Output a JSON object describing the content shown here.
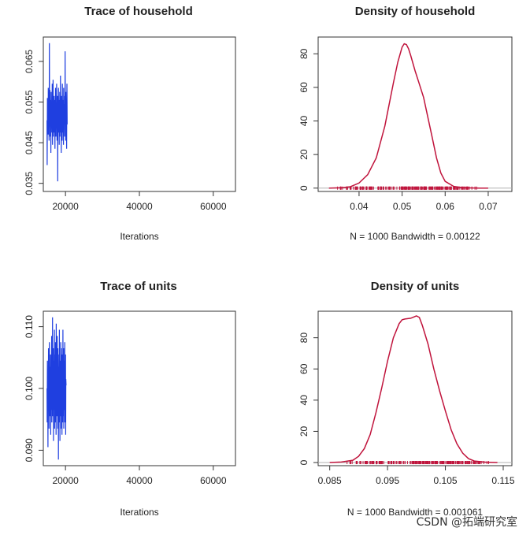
{
  "colors": {
    "trace": "#1f3fe0",
    "density": "#c0143c",
    "frame": "#333333",
    "zero_line": "#b0b0b0"
  },
  "watermark": "CSDN @拓端研究室",
  "chart_data": [
    {
      "type": "line",
      "title": "Trace of household",
      "xlabel": "Iterations",
      "ylabel": "",
      "xlim": [
        14000,
        66000
      ],
      "ylim": [
        0.033,
        0.071
      ],
      "xticks": [
        20000,
        40000,
        60000
      ],
      "xtick_labels": [
        "20000",
        "40000",
        "60000"
      ],
      "yticks": [
        0.035,
        0.045,
        0.055,
        0.065
      ],
      "ytick_labels": [
        "0.035",
        "0.045",
        "0.055",
        "0.065"
      ],
      "x_start": 15000,
      "x_step": 50,
      "values": [
        0.0505,
        0.0395,
        0.056,
        0.0485,
        0.0515,
        0.0535,
        0.047,
        0.0585,
        0.051,
        0.0495,
        0.055,
        0.0455,
        0.053,
        0.0695,
        0.049,
        0.0525,
        0.058,
        0.0465,
        0.0505,
        0.0555,
        0.0485,
        0.0425,
        0.0575,
        0.052,
        0.049,
        0.0545,
        0.0505,
        0.0475,
        0.0595,
        0.0515,
        0.0445,
        0.0535,
        0.0495,
        0.0605,
        0.0505,
        0.0465,
        0.0545,
        0.0515,
        0.0485,
        0.0565,
        0.0475,
        0.0525,
        0.0505,
        0.0435,
        0.0555,
        0.0495,
        0.0585,
        0.0515,
        0.0465,
        0.0545,
        0.0505,
        0.0485,
        0.0595,
        0.0525,
        0.0455,
        0.0535,
        0.0495,
        0.0565,
        0.0355,
        0.0505,
        0.0545,
        0.0475,
        0.0585,
        0.0515,
        0.0485,
        0.0555,
        0.0445,
        0.0525,
        0.0505,
        0.0575,
        0.0465,
        0.0535,
        0.0495,
        0.0615,
        0.0505,
        0.0475,
        0.0545,
        0.0425,
        0.0515,
        0.0565,
        0.0485,
        0.0525,
        0.0455,
        0.0595,
        0.0505,
        0.0535,
        0.0475,
        0.0555,
        0.0495,
        0.0445,
        0.0585,
        0.0515,
        0.0485,
        0.0545,
        0.0505,
        0.0465,
        0.0565,
        0.0525,
        0.0675,
        0.0495,
        0.0535,
        0.0455,
        0.0575,
        0.0505,
        0.0485,
        0.0545,
        0.0435,
        0.0525,
        0.0595,
        0.0495
      ]
    },
    {
      "type": "area",
      "title": "Density of household",
      "xlabel": "N = 1000   Bandwidth = 0.00122",
      "ylabel": "",
      "xlim": [
        0.0305,
        0.0755
      ],
      "ylim": [
        -2,
        90
      ],
      "xticks": [
        0.04,
        0.05,
        0.06,
        0.07
      ],
      "xtick_labels": [
        "0.04",
        "0.05",
        "0.06",
        "0.07"
      ],
      "yticks": [
        0,
        20,
        40,
        60,
        80
      ],
      "ytick_labels": [
        "0",
        "20",
        "40",
        "60",
        "80"
      ],
      "x": [
        0.033,
        0.036,
        0.038,
        0.04,
        0.042,
        0.044,
        0.046,
        0.047,
        0.048,
        0.049,
        0.05,
        0.0505,
        0.051,
        0.0515,
        0.052,
        0.053,
        0.054,
        0.055,
        0.056,
        0.057,
        0.058,
        0.059,
        0.06,
        0.062,
        0.064,
        0.066,
        0.068,
        0.07
      ],
      "y": [
        0,
        0.2,
        0.8,
        3,
        8,
        18,
        37,
        50,
        63,
        75,
        84,
        86,
        85.5,
        83,
        79,
        70,
        62,
        54,
        42,
        30,
        18,
        9,
        4,
        1,
        0.3,
        0.1,
        0,
        0
      ],
      "rug_range": [
        0.035,
        0.068
      ]
    },
    {
      "type": "line",
      "title": "Trace of units",
      "xlabel": "Iterations",
      "ylabel": "",
      "xlim": [
        14000,
        66000
      ],
      "ylim": [
        0.0875,
        0.1125
      ],
      "xticks": [
        20000,
        40000,
        60000
      ],
      "xtick_labels": [
        "20000",
        "40000",
        "60000"
      ],
      "yticks": [
        0.09,
        0.1,
        0.11
      ],
      "ytick_labels": [
        "0.090",
        "0.100",
        "0.110"
      ],
      "x_start": 15000,
      "x_step": 50,
      "values": [
        0.1,
        0.0945,
        0.1045,
        0.098,
        0.1015,
        0.0905,
        0.103,
        0.0995,
        0.1065,
        0.0965,
        0.1025,
        0.0935,
        0.1005,
        0.1075,
        0.0975,
        0.1035,
        0.0955,
        0.1015,
        0.0985,
        0.1055,
        0.0925,
        0.1045,
        0.0995,
        0.0965,
        0.1025,
        0.1085,
        0.0945,
        0.1005,
        0.1035,
        0.0975,
        0.1115,
        0.0955,
        0.1015,
        0.0985,
        0.1065,
        0.0915,
        0.1045,
        0.0995,
        0.1025,
        0.0965,
        0.1095,
        0.0935,
        0.1055,
        0.0985,
        0.1015,
        0.0945,
        0.1075,
        0.0975,
        0.1035,
        0.0925,
        0.1105,
        0.0965,
        0.1005,
        0.1045,
        0.0955,
        0.1085,
        0.0995,
        0.1025,
        0.0935,
        0.1065,
        0.0975,
        0.1015,
        0.0885,
        0.1035,
        0.0985,
        0.1055,
        0.0945,
        0.1095,
        0.0965,
        0.1025,
        0.0915,
        0.1045,
        0.1005,
        0.0955,
        0.1075,
        0.0985,
        0.1035,
        0.0935,
        0.1065,
        0.0995,
        0.1015,
        0.0925,
        0.1055,
        0.0975,
        0.1035,
        0.0945,
        0.1095,
        0.0985,
        0.1025,
        0.0955,
        0.1065,
        0.0935,
        0.1015,
        0.0995,
        0.1045,
        0.0965,
        0.1075,
        0.0945,
        0.1035,
        0.0985,
        0.1055,
        0.0925,
        0.1015,
        0.1005
      ]
    },
    {
      "type": "area",
      "title": "Density of units",
      "xlabel": "N = 1000   Bandwidth = 0.001061",
      "ylabel": "",
      "xlim": [
        0.083,
        0.1165
      ],
      "ylim": [
        -2,
        97
      ],
      "xticks": [
        0.085,
        0.095,
        0.105,
        0.115
      ],
      "xtick_labels": [
        "0.085",
        "0.095",
        "0.105",
        "0.115"
      ],
      "yticks": [
        0,
        20,
        40,
        60,
        80
      ],
      "ytick_labels": [
        "0",
        "20",
        "40",
        "60",
        "80"
      ],
      "x": [
        0.085,
        0.087,
        0.089,
        0.09,
        0.091,
        0.092,
        0.093,
        0.094,
        0.095,
        0.096,
        0.097,
        0.0975,
        0.098,
        0.099,
        0.1,
        0.1005,
        0.101,
        0.102,
        0.103,
        0.104,
        0.105,
        0.106,
        0.107,
        0.108,
        0.109,
        0.11,
        0.112,
        0.114
      ],
      "y": [
        0,
        0.3,
        1.5,
        4,
        9,
        18,
        32,
        48,
        65,
        80,
        89,
        91.5,
        92,
        92.5,
        94,
        93,
        88,
        76,
        60,
        46,
        33,
        21,
        12,
        6,
        2.5,
        1,
        0.2,
        0
      ],
      "rug_range": [
        0.088,
        0.113
      ]
    }
  ]
}
